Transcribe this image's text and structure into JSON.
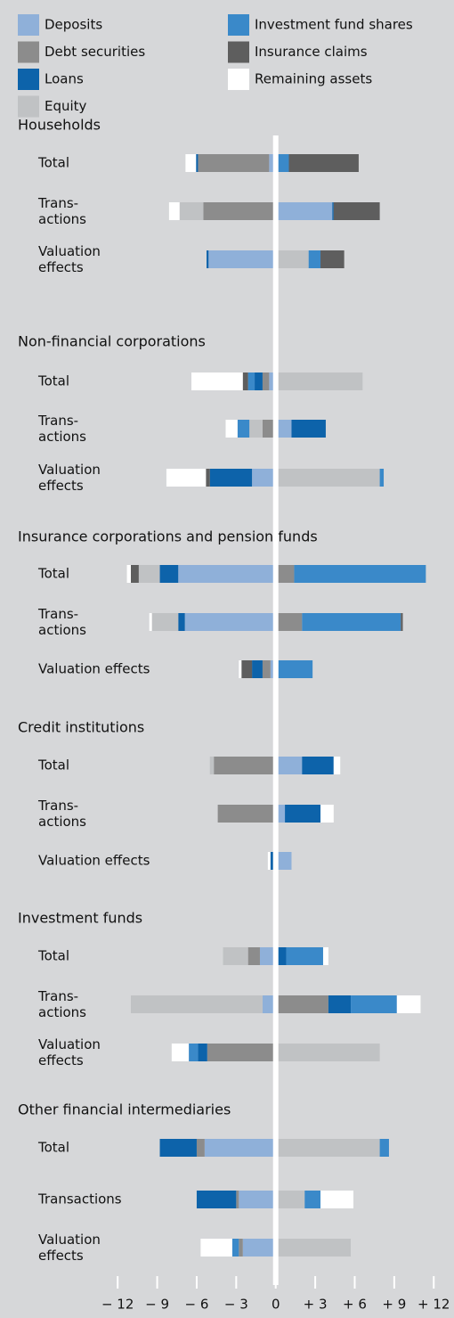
{
  "chart_data": {
    "type": "stacked-bar-horizontal",
    "series": [
      {
        "name": "Deposits",
        "color": "#8fb0d9",
        "values": [
          [
            -0.5,
            4.3,
            -5.1
          ],
          [
            -0.5,
            1.2,
            -1.8
          ],
          [
            -7.4,
            -6.9,
            -0.4
          ],
          [
            2.0,
            0.7,
            1.2
          ],
          [
            -1.2,
            -1.0,
            0
          ],
          [
            -5.4,
            -2.8,
            -2.5
          ]
        ]
      },
      {
        "name": "Debt securities",
        "color": "#8c8c8c",
        "values": [
          [
            -5.4,
            -5.5,
            0
          ],
          [
            -0.5,
            -1.0,
            0
          ],
          [
            1.4,
            2.0,
            -0.6
          ],
          [
            -4.7,
            -4.4,
            0
          ],
          [
            -0.9,
            4.0,
            -5.2
          ],
          [
            -0.6,
            -0.2,
            -0.3
          ]
        ]
      },
      {
        "name": "Loans",
        "color": "#0d63aa",
        "values": [
          [
            -0.15,
            0.1,
            -0.15
          ],
          [
            -0.6,
            2.6,
            -3.2
          ],
          [
            -1.4,
            -0.5,
            -0.8
          ],
          [
            2.4,
            2.7,
            -0.4
          ],
          [
            0.8,
            1.7,
            -0.7
          ],
          [
            -2.8,
            -3.0,
            0
          ]
        ]
      },
      {
        "name": "Equity",
        "color": "#c0c2c4",
        "values": [
          [
            0,
            -1.8,
            2.5
          ],
          [
            6.6,
            -1.0,
            7.9
          ],
          [
            -1.6,
            -2.0,
            0.2
          ],
          [
            -0.3,
            0,
            0
          ],
          [
            -1.9,
            -10.0,
            7.9
          ],
          [
            7.9,
            2.2,
            5.7
          ]
        ]
      },
      {
        "name": "Investment fund shares",
        "color": "#3a89c9",
        "values": [
          [
            1.0,
            0,
            0.9
          ],
          [
            -0.5,
            -0.9,
            0.3
          ],
          [
            10.0,
            7.5,
            2.6
          ],
          [
            0,
            0,
            0
          ],
          [
            2.8,
            3.5,
            -0.7
          ],
          [
            0.7,
            1.2,
            -0.5
          ]
        ]
      },
      {
        "name": "Insurance claims",
        "color": "#5e5e5e",
        "values": [
          [
            5.3,
            3.5,
            1.8
          ],
          [
            -0.4,
            0,
            -0.3
          ],
          [
            -0.6,
            0.15,
            -0.8
          ],
          [
            0,
            0,
            0
          ],
          [
            0,
            0,
            0
          ],
          [
            0,
            0,
            0
          ]
        ]
      },
      {
        "name": "Remaining assets",
        "color": "#ffffff",
        "values": [
          [
            -0.8,
            -0.8,
            0
          ],
          [
            -3.9,
            -0.9,
            -3.0
          ],
          [
            -0.3,
            -0.2,
            -0.2
          ],
          [
            0.5,
            1.0,
            -0.2
          ],
          [
            0.4,
            1.8,
            -1.3
          ],
          [
            0,
            2.5,
            -2.4
          ]
        ]
      }
    ],
    "groups": [
      {
        "title": "Households",
        "categories": [
          "Total",
          "Trans-\nactions",
          "Valuation\neffects"
        ]
      },
      {
        "title": "Non-financial corporations",
        "categories": [
          "Total",
          "Trans-\nactions",
          "Valuation\neffects"
        ]
      },
      {
        "title": "Insurance corporations and pension funds",
        "categories": [
          "Total",
          "Trans-\nactions",
          "Valuation effects"
        ]
      },
      {
        "title": "Credit institutions",
        "categories": [
          "Total",
          "Trans-\nactions",
          "Valuation effects"
        ]
      },
      {
        "title": "Investment funds",
        "categories": [
          "Total",
          "Trans-\nactions",
          "Valuation\neffects"
        ]
      },
      {
        "title": "Other financial intermediaries",
        "categories": [
          "Total",
          "Transactions",
          "Valuation\neffects"
        ]
      }
    ],
    "xlim": [
      -13.5,
      13.2
    ],
    "xticks": [
      {
        "value": -12,
        "label": "− 12"
      },
      {
        "value": -9,
        "label": "− 9"
      },
      {
        "value": -6,
        "label": "− 6"
      },
      {
        "value": -3,
        "label": "− 3"
      },
      0,
      {
        "value": 3,
        "label": "+ 3"
      },
      {
        "value": 6,
        "label": "+ 6"
      },
      {
        "value": 9,
        "label": "+ 9"
      },
      {
        "value": 12,
        "label": "+ 12"
      }
    ]
  }
}
